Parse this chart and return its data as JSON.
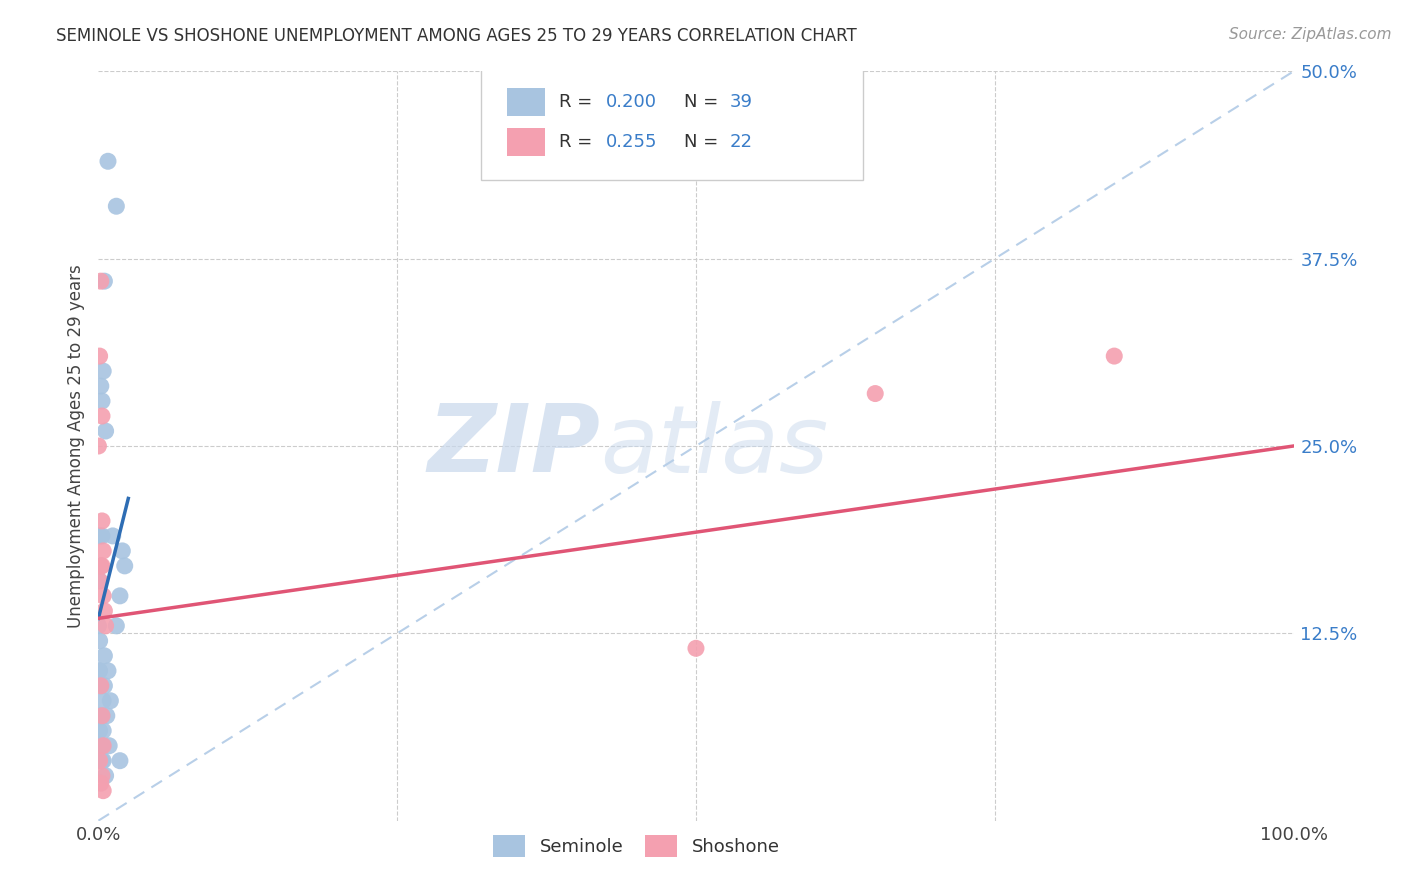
{
  "title": "SEMINOLE VS SHOSHONE UNEMPLOYMENT AMONG AGES 25 TO 29 YEARS CORRELATION CHART",
  "source": "Source: ZipAtlas.com",
  "ylabel": "Unemployment Among Ages 25 to 29 years",
  "xlim": [
    0,
    1.0
  ],
  "ylim": [
    0,
    0.5
  ],
  "seminole_R": 0.2,
  "seminole_N": 39,
  "shoshone_R": 0.255,
  "shoshone_N": 22,
  "seminole_color": "#a8c4e0",
  "shoshone_color": "#f4a0b0",
  "seminole_line_color": "#2e6db4",
  "shoshone_line_color": "#e05575",
  "diagonal_color": "#b8cfe8",
  "background_color": "#ffffff",
  "watermark_zip": "ZIP",
  "watermark_atlas": "atlas",
  "seminole_x": [
    0.008,
    0.015,
    0.005,
    0.002,
    0.003,
    0.004,
    0.006,
    0.002,
    0.001,
    0.003,
    0.001,
    0.0,
    0.0,
    0.001,
    0.002,
    0.004,
    0.003,
    0.0,
    0.001,
    0.012,
    0.02,
    0.018,
    0.022,
    0.015,
    0.008,
    0.005,
    0.01,
    0.005,
    0.007,
    0.009,
    0.018,
    0.006,
    0.003,
    0.004,
    0.001,
    0.002,
    0.003,
    0.004,
    0.0
  ],
  "seminole_y": [
    0.44,
    0.41,
    0.36,
    0.29,
    0.28,
    0.3,
    0.26,
    0.17,
    0.16,
    0.19,
    0.19,
    0.13,
    0.1,
    0.1,
    0.09,
    0.08,
    0.07,
    0.07,
    0.12,
    0.19,
    0.18,
    0.15,
    0.17,
    0.13,
    0.1,
    0.11,
    0.08,
    0.09,
    0.07,
    0.05,
    0.04,
    0.03,
    0.04,
    0.04,
    0.06,
    0.05,
    0.05,
    0.06,
    0.05
  ],
  "shoshone_x": [
    0.0,
    0.001,
    0.002,
    0.003,
    0.003,
    0.004,
    0.003,
    0.004,
    0.005,
    0.006,
    0.002,
    0.003,
    0.004,
    0.001,
    0.002,
    0.003,
    0.004,
    0.001,
    0.002,
    0.5,
    0.65,
    0.85
  ],
  "shoshone_y": [
    0.25,
    0.31,
    0.36,
    0.27,
    0.2,
    0.18,
    0.17,
    0.15,
    0.14,
    0.13,
    0.09,
    0.07,
    0.05,
    0.16,
    0.17,
    0.03,
    0.02,
    0.04,
    0.025,
    0.115,
    0.285,
    0.31
  ],
  "sem_line_x0": 0.0,
  "sem_line_x1": 0.025,
  "sem_line_y0": 0.135,
  "sem_line_y1": 0.215,
  "sho_line_x0": 0.0,
  "sho_line_x1": 1.0,
  "sho_line_y0": 0.135,
  "sho_line_y1": 0.25
}
